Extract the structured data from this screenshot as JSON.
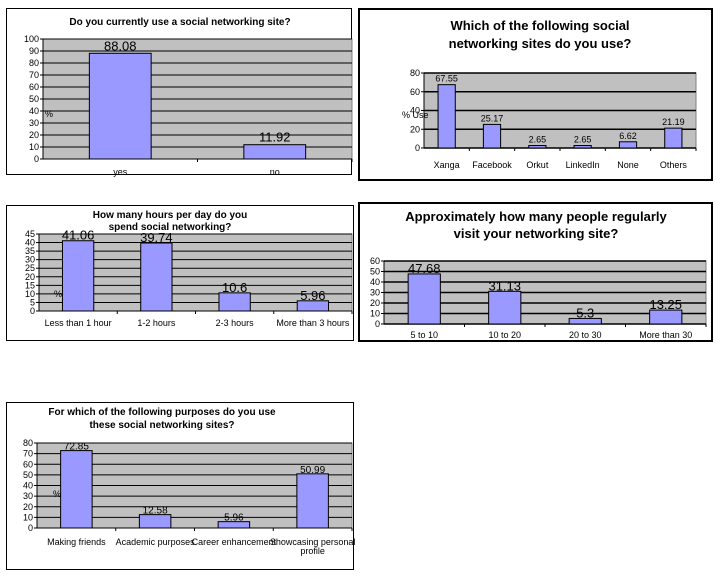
{
  "chart_data": [
    {
      "id": "c1",
      "type": "bar",
      "title": "Do you currently use a social networking site?",
      "ylabel": "%",
      "categories": [
        "yes",
        "no"
      ],
      "values": [
        88.08,
        11.92
      ],
      "value_labels": [
        "88.08",
        "11.92"
      ],
      "ylim": [
        0,
        100
      ],
      "yticks": [
        0,
        10,
        20,
        30,
        40,
        50,
        60,
        70,
        80,
        90,
        100
      ],
      "grid": true,
      "bar_color": "#9999ff",
      "plot_color": "#c0c0c0"
    },
    {
      "id": "c2",
      "type": "bar",
      "title": "Which of the following social networking sites do you use?",
      "ylabel": "% Use",
      "categories": [
        "Xanga",
        "Facebook",
        "Orkut",
        "LinkedIn",
        "None",
        "Others"
      ],
      "values": [
        67.55,
        25.17,
        2.65,
        2.65,
        6.62,
        21.19
      ],
      "value_labels": [
        "67.55",
        "25.17",
        "2.65",
        "2.65",
        "6.62",
        "21.19"
      ],
      "ylim": [
        0,
        80
      ],
      "yticks": [
        0,
        20,
        40,
        60,
        80
      ],
      "grid": true,
      "bar_color": "#9999ff",
      "plot_color": "#c0c0c0"
    },
    {
      "id": "c3",
      "type": "bar",
      "title": "How many hours per day do you spend social networking?",
      "ylabel": "%",
      "categories": [
        "Less than 1 hour",
        "1-2 hours",
        "2-3 hours",
        "More than 3 hours"
      ],
      "values": [
        41.06,
        39.74,
        10.6,
        5.96
      ],
      "value_labels": [
        "41.06",
        "39.74",
        "10.6",
        "5.96"
      ],
      "ylim": [
        0,
        45
      ],
      "yticks": [
        0,
        5,
        10,
        15,
        20,
        25,
        30,
        35,
        40,
        45
      ],
      "grid": true,
      "bar_color": "#9999ff",
      "plot_color": "#c0c0c0"
    },
    {
      "id": "c4",
      "type": "bar",
      "title": "Approximately how many people regularly visit your networking site?",
      "ylabel": "",
      "categories": [
        "5 to 10",
        "10 to 20",
        "20 to 30",
        "More than 30"
      ],
      "values": [
        47.68,
        31.13,
        5.3,
        13.25
      ],
      "value_labels": [
        "47.68",
        "31.13",
        "5.3",
        "13.25"
      ],
      "ylim": [
        0,
        60
      ],
      "yticks": [
        0,
        10,
        20,
        30,
        40,
        50,
        60
      ],
      "grid": true,
      "bar_color": "#9999ff",
      "plot_color": "#c0c0c0"
    },
    {
      "id": "c5",
      "type": "bar",
      "title": "For which of the following purposes do you use these social networking sites?",
      "ylabel": "%",
      "categories": [
        "Making friends",
        "Academic purposes",
        "Career enhancement",
        "Showcasing personal profile"
      ],
      "values": [
        72.85,
        12.58,
        5.96,
        50.99
      ],
      "value_labels": [
        "72.85",
        "12.58",
        "5.96",
        "50.99"
      ],
      "ylim": [
        0,
        80
      ],
      "yticks": [
        0,
        10,
        20,
        30,
        40,
        50,
        60,
        70,
        80
      ],
      "grid": true,
      "bar_color": "#9999ff",
      "plot_color": "#c0c0c0"
    }
  ]
}
